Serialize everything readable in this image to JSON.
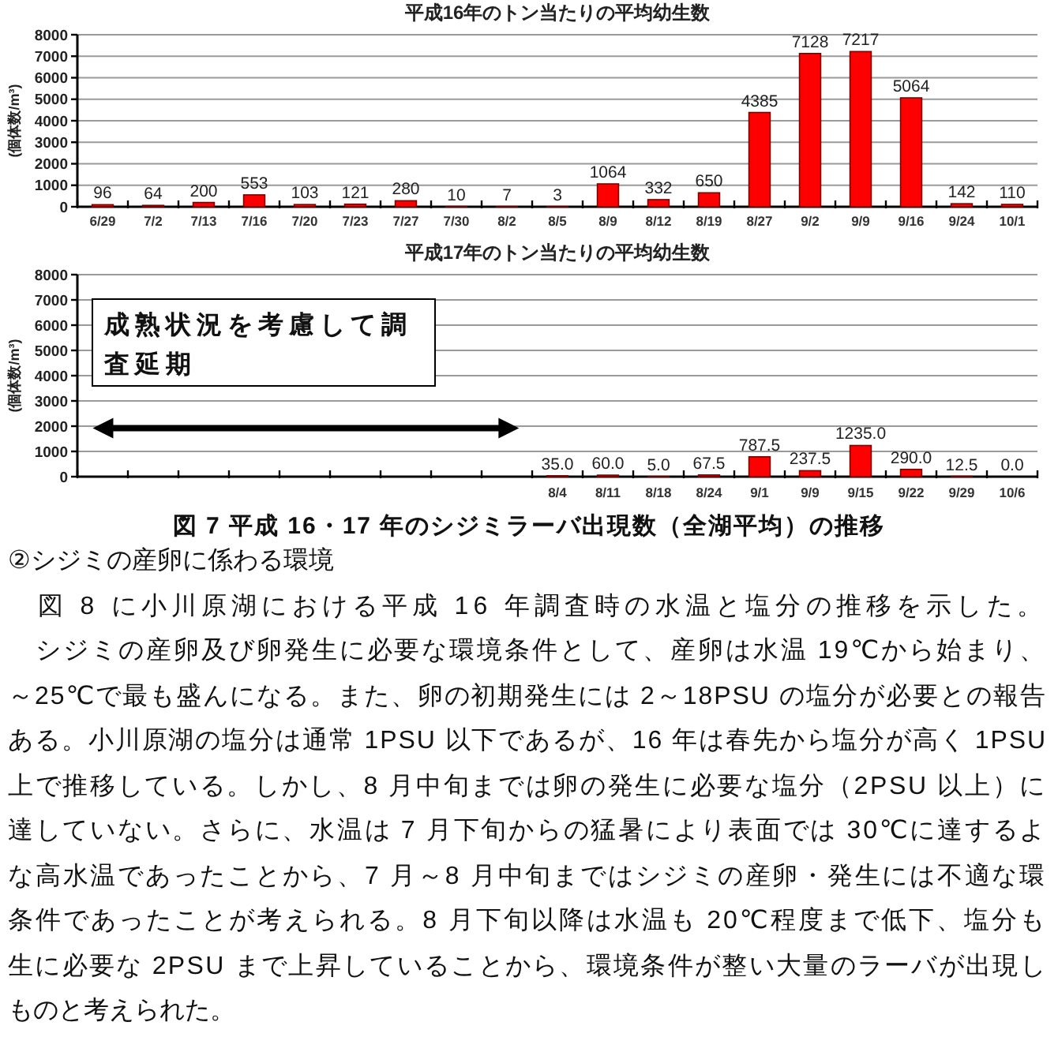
{
  "chart_data": [
    {
      "type": "bar",
      "title": "平成16年のトン当たりの平均幼生数",
      "ylabel": "(個体数/m³)",
      "categories": [
        "6/29",
        "7/2",
        "7/13",
        "7/16",
        "7/20",
        "7/23",
        "7/27",
        "7/30",
        "8/2",
        "8/5",
        "8/9",
        "8/12",
        "8/19",
        "8/27",
        "9/2",
        "9/9",
        "9/16",
        "9/24",
        "10/1"
      ],
      "values": [
        96,
        64,
        200,
        553,
        103,
        121,
        280,
        10,
        7,
        3,
        1064,
        332,
        650,
        4385,
        7128,
        7217,
        5064,
        142,
        110
      ],
      "color": "#ff0000",
      "ylim": [
        0,
        8000
      ],
      "yticks": [
        0,
        1000,
        2000,
        3000,
        4000,
        5000,
        6000,
        7000,
        8000
      ],
      "grid": "y",
      "data_labels": true
    },
    {
      "type": "bar",
      "title": "平成17年のトン当たりの平均幼生数",
      "ylabel": "(個体数/m³)",
      "categories": [
        null,
        null,
        null,
        null,
        null,
        null,
        null,
        null,
        null,
        "8/4",
        "8/11",
        "8/18",
        "8/24",
        "9/1",
        "9/9",
        "9/15",
        "9/22",
        "9/29",
        "10/6"
      ],
      "values": [
        null,
        null,
        null,
        null,
        null,
        null,
        null,
        null,
        null,
        35,
        60,
        5,
        67.5,
        787.5,
        237.5,
        1235,
        290,
        12.5,
        0
      ],
      "value_labels": [
        null,
        null,
        null,
        null,
        null,
        null,
        null,
        null,
        null,
        "35.0",
        "60.0",
        "5.0",
        "67.5",
        "787.5",
        "237.5",
        "1235.0",
        "290.0",
        "12.5",
        "0.0"
      ],
      "color": "#ff0000",
      "ylim": [
        0,
        8000
      ],
      "yticks": [
        0,
        1000,
        2000,
        3000,
        4000,
        5000,
        6000,
        7000,
        8000
      ],
      "grid": "y",
      "annotations": [
        "成熟状況を考慮して調査延期",
        "図 7 平成 16・17 年のシジミラーバ出現数（全湖平均）の推移"
      ]
    },
    {
      "type": "other",
      "annotations": [
        "②シジミの産卵に係わる環境",
        "　図 8 に小川原湖における平成 16 年調査時の水温と塩分の推移を示した。",
        "　シジミの産卵及び卵発生に必要な環境条件として、産卵は水温 19℃から始まり、",
        "～25℃で最も盛んになる。また、卵の初期発生には 2～18PSU の塩分が必要との報告",
        "ある。小川原湖の塩分は通常 1PSU 以下であるが、16 年は春先から塩分が高く 1PSU",
        "上で推移している。しかし、8 月中旬までは卵の発生に必要な塩分（2PSU 以上）に",
        "達していない。さらに、水温は 7 月下旬からの猛暑により表面では 30℃に達するよ",
        "な高水温であったことから、7 月～8 月中旬まではシジミの産卵・発生には不適な環",
        "条件であったことが考えられる。8 月下旬以降は水温も 20℃程度まで低下、塩分も",
        "生に必要な 2PSU まで上昇していることから、環境条件が整い大量のラーバが出現し",
        "ものと考えられた。"
      ]
    }
  ]
}
